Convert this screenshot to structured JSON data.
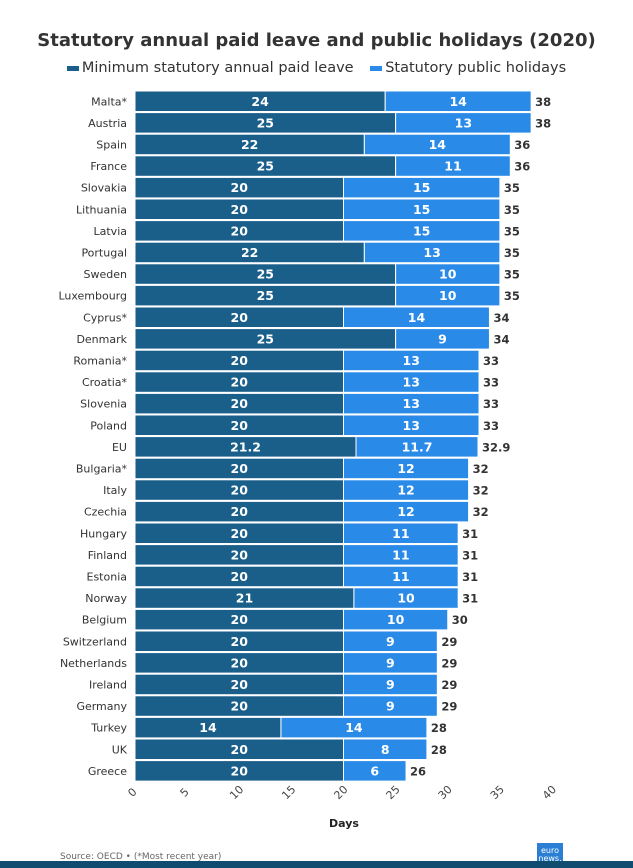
{
  "chart_data": {
    "type": "bar",
    "stacked": true,
    "orientation": "horizontal",
    "title": "Statutory annual paid leave and public holidays (2020)",
    "xlabel": "Days",
    "ylabel": "",
    "xlim": [
      0,
      40
    ],
    "xticks": [
      "0",
      "5",
      "10",
      "15",
      "20",
      "25",
      "30",
      "35",
      "40"
    ],
    "legend_position": "top",
    "categories": [
      "Malta*",
      "Austria",
      "Spain",
      "France",
      "Slovakia",
      "Lithuania",
      "Latvia",
      "Portugal",
      "Sweden",
      "Luxembourg",
      "Cyprus*",
      "Denmark",
      "Romania*",
      "Croatia*",
      "Slovenia",
      "Poland",
      "EU",
      "Bulgaria*",
      "Italy",
      "Czechia",
      "Hungary",
      "Finland",
      "Estonia",
      "Norway",
      "Belgium",
      "Switzerland",
      "Netherlands",
      "Ireland",
      "Germany",
      "Turkey",
      "UK",
      "Greece"
    ],
    "series": [
      {
        "name": "Minimum statutory annual paid leave",
        "color": "#1a5e8a",
        "values": [
          24,
          25,
          22,
          25,
          20,
          20,
          20,
          22,
          25,
          25,
          20,
          25,
          20,
          20,
          20,
          20,
          21.2,
          20,
          20,
          20,
          20,
          20,
          20,
          21,
          20,
          20,
          20,
          20,
          20,
          14,
          20,
          20
        ]
      },
      {
        "name": "Statutory public holidays",
        "color": "#2a8ae8",
        "values": [
          14,
          13,
          14,
          11,
          15,
          15,
          15,
          13,
          10,
          10,
          14,
          9,
          13,
          13,
          13,
          13,
          11.7,
          12,
          12,
          12,
          11,
          11,
          11,
          10,
          10,
          9,
          9,
          9,
          9,
          14,
          8,
          6
        ]
      }
    ],
    "totals": [
      "38",
      "38",
      "36",
      "36",
      "35",
      "35",
      "35",
      "35",
      "35",
      "35",
      "34",
      "34",
      "33",
      "33",
      "33",
      "33",
      "32.9",
      "32",
      "32",
      "32",
      "31",
      "31",
      "31",
      "31",
      "30",
      "29",
      "29",
      "29",
      "29",
      "28",
      "28",
      "26"
    ]
  },
  "footer": {
    "source": "Source: OECD • (*Most recent year)",
    "logo": "euro news."
  }
}
